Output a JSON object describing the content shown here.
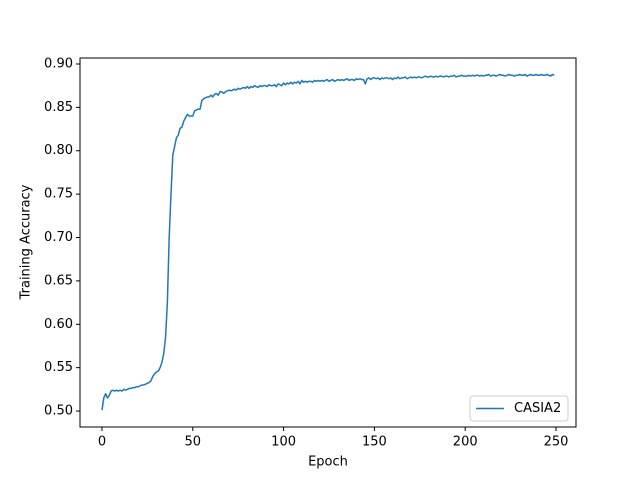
{
  "chart_data": {
    "type": "line",
    "xlabel": "Epoch",
    "ylabel": "Training Accuracy",
    "xlim": [
      -12.1,
      261
    ],
    "ylim": [
      0.4816,
      0.9069
    ],
    "xticks": [
      0,
      50,
      100,
      150,
      200,
      250
    ],
    "yticks": [
      {
        "value": 0.5,
        "label": "0.50"
      },
      0.55,
      {
        "value": 0.6,
        "label": "0.60"
      },
      0.65,
      {
        "value": 0.7,
        "label": "0.70"
      },
      0.75,
      {
        "value": 0.8,
        "label": "0.80"
      },
      0.85,
      {
        "value": 0.9,
        "label": "0.90"
      }
    ],
    "legend": "lower right",
    "x": [
      0,
      1,
      2,
      3,
      4,
      5,
      6,
      7,
      8,
      9,
      10,
      11,
      12,
      13,
      14,
      15,
      16,
      17,
      18,
      19,
      20,
      21,
      22,
      23,
      24,
      25,
      26,
      27,
      28,
      29,
      30,
      31,
      32,
      33,
      34,
      35,
      36,
      37,
      38,
      39,
      40,
      41,
      42,
      43,
      44,
      45,
      46,
      47,
      48,
      49,
      50,
      51,
      52,
      53,
      54,
      55,
      56,
      57,
      58,
      59,
      60,
      61,
      62,
      63,
      64,
      65,
      66,
      67,
      68,
      69,
      70,
      71,
      72,
      73,
      74,
      75,
      76,
      77,
      78,
      79,
      80,
      81,
      82,
      83,
      84,
      85,
      86,
      87,
      88,
      89,
      90,
      91,
      92,
      93,
      94,
      95,
      96,
      97,
      98,
      99,
      100,
      101,
      102,
      103,
      104,
      105,
      106,
      107,
      108,
      109,
      110,
      111,
      112,
      113,
      114,
      115,
      116,
      117,
      118,
      119,
      120,
      121,
      122,
      123,
      124,
      125,
      126,
      127,
      128,
      129,
      130,
      131,
      132,
      133,
      134,
      135,
      136,
      137,
      138,
      139,
      140,
      141,
      142,
      143,
      144,
      145,
      146,
      147,
      148,
      149,
      150,
      151,
      152,
      153,
      154,
      155,
      156,
      157,
      158,
      159,
      160,
      161,
      162,
      163,
      164,
      165,
      166,
      167,
      168,
      169,
      170,
      171,
      172,
      173,
      174,
      175,
      176,
      177,
      178,
      179,
      180,
      181,
      182,
      183,
      184,
      185,
      186,
      187,
      188,
      189,
      190,
      191,
      192,
      193,
      194,
      195,
      196,
      197,
      198,
      199,
      200,
      201,
      202,
      203,
      204,
      205,
      206,
      207,
      208,
      209,
      210,
      211,
      212,
      213,
      214,
      215,
      216,
      217,
      218,
      219,
      220,
      221,
      222,
      223,
      224,
      225,
      226,
      227,
      228,
      229,
      230,
      231,
      232,
      233,
      234,
      235,
      236,
      237,
      238,
      239,
      240,
      241,
      242,
      243,
      244,
      245,
      246,
      247,
      248,
      249
    ],
    "series": [
      {
        "name": "CASIA2",
        "color": "#1f77b4",
        "values": [
          0.501,
          0.515,
          0.52,
          0.515,
          0.518,
          0.523,
          0.524,
          0.523,
          0.524,
          0.523,
          0.524,
          0.523,
          0.525,
          0.524,
          0.525,
          0.526,
          0.526,
          0.527,
          0.527,
          0.528,
          0.528,
          0.529,
          0.53,
          0.53,
          0.531,
          0.532,
          0.533,
          0.535,
          0.54,
          0.543,
          0.545,
          0.546,
          0.55,
          0.556,
          0.566,
          0.585,
          0.625,
          0.7,
          0.75,
          0.795,
          0.805,
          0.815,
          0.818,
          0.826,
          0.827,
          0.834,
          0.838,
          0.842,
          0.84,
          0.84,
          0.84,
          0.846,
          0.847,
          0.848,
          0.848,
          0.858,
          0.86,
          0.861,
          0.862,
          0.862,
          0.864,
          0.862,
          0.865,
          0.866,
          0.864,
          0.868,
          0.868,
          0.866,
          0.868,
          0.869,
          0.87,
          0.869,
          0.87,
          0.871,
          0.87,
          0.872,
          0.871,
          0.872,
          0.873,
          0.872,
          0.874,
          0.872,
          0.874,
          0.873,
          0.875,
          0.874,
          0.873,
          0.875,
          0.874,
          0.875,
          0.875,
          0.874,
          0.876,
          0.875,
          0.875,
          0.876,
          0.874,
          0.877,
          0.876,
          0.875,
          0.878,
          0.876,
          0.878,
          0.877,
          0.879,
          0.877,
          0.879,
          0.878,
          0.88,
          0.877,
          0.881,
          0.879,
          0.88,
          0.879,
          0.88,
          0.88,
          0.879,
          0.881,
          0.88,
          0.881,
          0.88,
          0.881,
          0.88,
          0.881,
          0.882,
          0.88,
          0.881,
          0.882,
          0.88,
          0.881,
          0.882,
          0.881,
          0.882,
          0.881,
          0.882,
          0.883,
          0.881,
          0.882,
          0.882,
          0.881,
          0.883,
          0.882,
          0.883,
          0.882,
          0.882,
          0.877,
          0.883,
          0.884,
          0.882,
          0.884,
          0.884,
          0.883,
          0.884,
          0.882,
          0.884,
          0.883,
          0.884,
          0.884,
          0.883,
          0.884,
          0.882,
          0.884,
          0.883,
          0.885,
          0.883,
          0.884,
          0.884,
          0.885,
          0.883,
          0.884,
          0.885,
          0.884,
          0.885,
          0.884,
          0.885,
          0.885,
          0.884,
          0.885,
          0.886,
          0.885,
          0.885,
          0.886,
          0.885,
          0.885,
          0.886,
          0.885,
          0.886,
          0.886,
          0.885,
          0.886,
          0.886,
          0.885,
          0.886,
          0.886,
          0.887,
          0.885,
          0.886,
          0.886,
          0.887,
          0.886,
          0.886,
          0.886,
          0.887,
          0.886,
          0.887,
          0.886,
          0.887,
          0.887,
          0.886,
          0.887,
          0.886,
          0.887,
          0.887,
          0.888,
          0.886,
          0.887,
          0.887,
          0.886,
          0.887,
          0.888,
          0.887,
          0.887,
          0.886,
          0.887,
          0.888,
          0.887,
          0.887,
          0.886,
          0.887,
          0.887,
          0.888,
          0.887,
          0.887,
          0.888,
          0.886,
          0.887,
          0.888,
          0.887,
          0.887,
          0.888,
          0.887,
          0.887,
          0.888,
          0.887,
          0.887,
          0.888,
          0.887,
          0.886,
          0.888,
          0.887
        ]
      }
    ]
  }
}
